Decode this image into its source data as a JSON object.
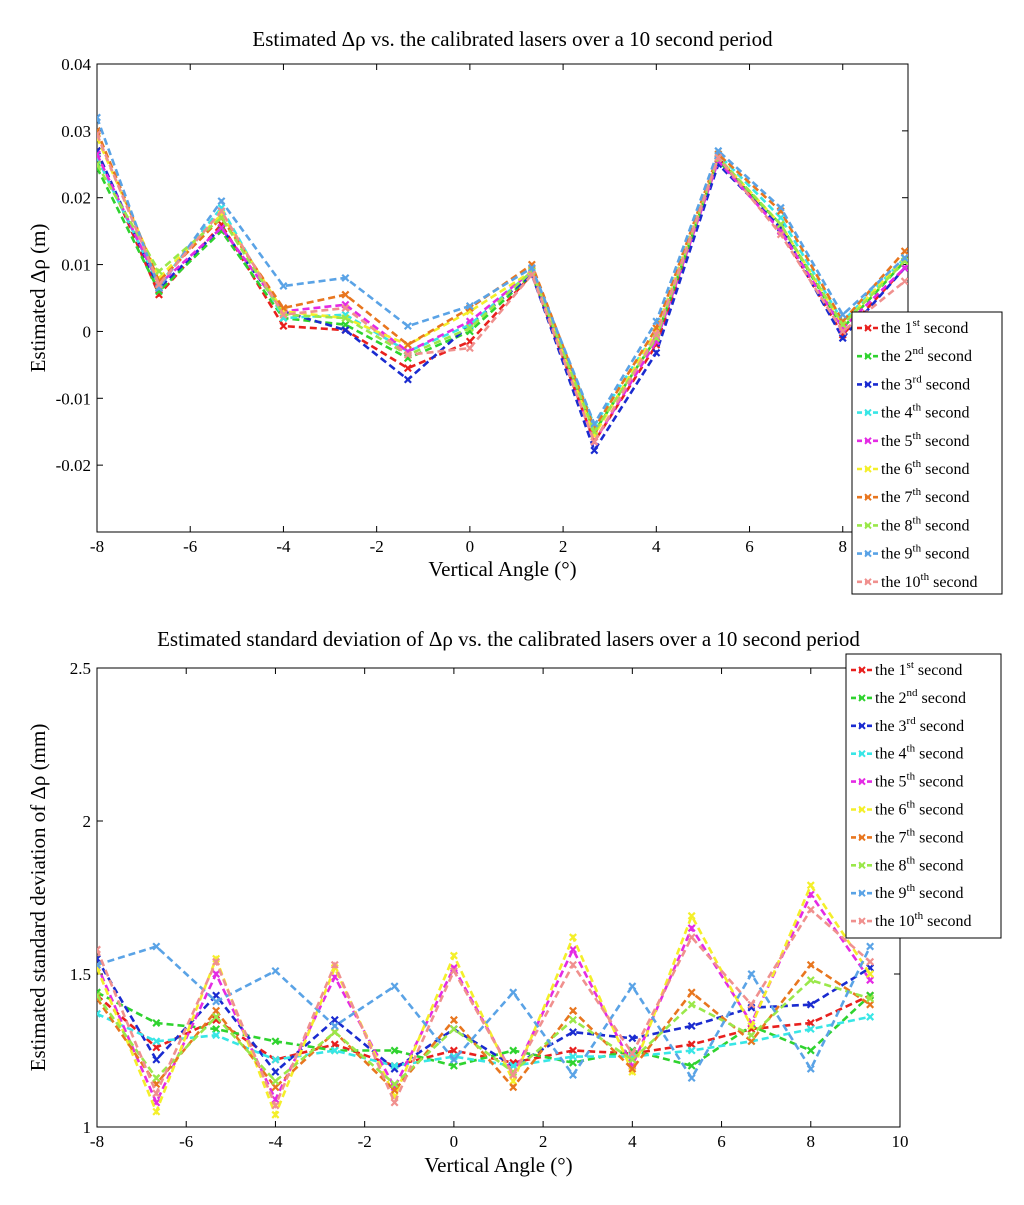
{
  "chart_data": [
    {
      "type": "line",
      "title": "Estimated Δρ vs. the calibrated lasers over a 10 second period",
      "xlabel": "Vertical Angle (°)",
      "ylabel": "Estimated Δρ (m)",
      "xlim": [
        -8,
        9.4
      ],
      "ylim": [
        -0.03,
        0.04
      ],
      "xticks": [
        -8,
        -6,
        -4,
        -2,
        0,
        2,
        4,
        6,
        8
      ],
      "xtick_labels": [
        "-8",
        "-6",
        "-4",
        "-2",
        "0",
        "2",
        "4",
        "6",
        "8"
      ],
      "yticks": [
        -0.02,
        -0.01,
        0,
        0.01,
        0.02,
        0.03,
        0.04
      ],
      "ytick_labels": [
        "-0.02",
        "-0.01",
        "0",
        "0.01",
        "0.02",
        "0.03",
        "0.04"
      ],
      "legend_position": "right",
      "x": [
        -8,
        -6.67,
        -5.33,
        -4,
        -2.67,
        -1.33,
        0,
        1.33,
        2.67,
        4,
        5.33,
        6.67,
        8,
        9.33
      ],
      "series": [
        {
          "name": "the 1st second",
          "label_pre": "the 1",
          "label_sup": "st",
          "label_post": " second",
          "color": "#e8201e",
          "values": [
            0.027,
            0.0055,
            0.016,
            0.0008,
            0.0002,
            -0.0055,
            -0.0015,
            0.0085,
            -0.0165,
            -0.002,
            0.026,
            0.015,
            -0.0005,
            0.0095
          ]
        },
        {
          "name": "the 2nd second",
          "label_pre": "the 2",
          "label_sup": "nd",
          "label_post": " second",
          "color": "#2fd32f",
          "values": [
            0.0245,
            0.006,
            0.015,
            0.002,
            0.001,
            -0.004,
            0.0,
            0.0085,
            -0.015,
            -0.001,
            0.0255,
            0.016,
            0.0005,
            0.0105
          ]
        },
        {
          "name": "the 3rd second",
          "label_pre": "the 3",
          "label_sup": "rd",
          "label_post": " second",
          "color": "#1a2bd0",
          "values": [
            0.027,
            0.0065,
            0.0155,
            0.003,
            0.0002,
            -0.0072,
            0.001,
            0.0085,
            -0.0178,
            -0.0032,
            0.025,
            0.0155,
            -0.001,
            0.0095
          ]
        },
        {
          "name": "the 4th second",
          "label_pre": "the 4",
          "label_sup": "th",
          "label_post": " second",
          "color": "#38e6e6",
          "values": [
            0.026,
            0.007,
            0.0185,
            0.002,
            0.0025,
            -0.003,
            0.001,
            0.009,
            -0.014,
            0.0,
            0.0265,
            0.017,
            0.0015,
            0.011
          ]
        },
        {
          "name": "the 5th second",
          "label_pre": "the 5",
          "label_sup": "th",
          "label_post": " second",
          "color": "#e42be4",
          "values": [
            0.0265,
            0.007,
            0.0155,
            0.003,
            0.004,
            -0.003,
            0.0015,
            0.009,
            -0.0165,
            -0.0015,
            0.0255,
            0.015,
            0.0005,
            0.0095
          ]
        },
        {
          "name": "the 6th second",
          "label_pre": "the 6",
          "label_sup": "th",
          "label_post": " second",
          "color": "#f4ef2a",
          "values": [
            0.029,
            0.008,
            0.0175,
            0.003,
            0.002,
            -0.002,
            0.003,
            0.009,
            -0.0155,
            0.0,
            0.026,
            0.016,
            0.001,
            0.011
          ]
        },
        {
          "name": "the 7th second",
          "label_pre": "the 7",
          "label_sup": "th",
          "label_post": " second",
          "color": "#e8761f",
          "values": [
            0.03,
            0.0075,
            0.017,
            0.0035,
            0.0055,
            -0.002,
            0.0035,
            0.01,
            -0.0145,
            0.0005,
            0.0265,
            0.018,
            0.0015,
            0.012
          ]
        },
        {
          "name": "the 8th second",
          "label_pre": "the 8",
          "label_sup": "th",
          "label_post": " second",
          "color": "#9ae84a",
          "values": [
            0.025,
            0.009,
            0.017,
            0.0025,
            0.002,
            -0.0035,
            0.0005,
            0.009,
            -0.015,
            -0.001,
            0.026,
            0.016,
            0.001,
            0.0105
          ]
        },
        {
          "name": "the 9th second",
          "label_pre": "the 9",
          "label_sup": "th",
          "label_post": " second",
          "color": "#5aa3e6",
          "values": [
            0.032,
            0.0065,
            0.0195,
            0.0068,
            0.008,
            0.0008,
            0.0038,
            0.0095,
            -0.0138,
            0.0015,
            0.027,
            0.0185,
            0.0025,
            0.011
          ]
        },
        {
          "name": "the 10th second",
          "label_pre": "the 10",
          "label_sup": "th",
          "label_post": " second",
          "color": "#f0908e",
          "values": [
            0.0295,
            0.007,
            0.018,
            0.0025,
            0.0035,
            -0.0035,
            -0.0025,
            0.0085,
            -0.0165,
            -0.0005,
            0.026,
            0.0145,
            0.0,
            0.0075
          ]
        }
      ]
    },
    {
      "type": "line",
      "title": "Estimated standard deviation of Δρ vs. the calibrated lasers over a 10 second period",
      "xlabel": "Vertical Angle (°)",
      "ylabel": "Estimated standard deviation of Δρ (mm)",
      "xlim": [
        -8,
        10
      ],
      "ylim": [
        1,
        2.5
      ],
      "xticks": [
        -8,
        -6,
        -4,
        -2,
        0,
        2,
        4,
        6,
        8,
        10
      ],
      "xtick_labels": [
        "-8",
        "-6",
        "-4",
        "-2",
        "0",
        "2",
        "4",
        "6",
        "8",
        "10"
      ],
      "yticks": [
        1,
        1.5,
        2,
        2.5
      ],
      "ytick_labels": [
        "1",
        "1.5",
        "2",
        "2.5"
      ],
      "legend_position": "top-right",
      "x": [
        -8,
        -6.67,
        -5.33,
        -4,
        -2.67,
        -1.33,
        0,
        1.33,
        2.67,
        4,
        5.33,
        6.67,
        8,
        9.33
      ],
      "series": [
        {
          "name": "the 1st second",
          "label_pre": "the 1",
          "label_sup": "st",
          "label_post": " second",
          "color": "#e8201e",
          "values": [
            1.43,
            1.26,
            1.35,
            1.22,
            1.27,
            1.2,
            1.25,
            1.21,
            1.25,
            1.24,
            1.27,
            1.32,
            1.34,
            1.43
          ]
        },
        {
          "name": "the 2nd second",
          "label_pre": "the 2",
          "label_sup": "nd",
          "label_post": " second",
          "color": "#2fd32f",
          "values": [
            1.44,
            1.34,
            1.32,
            1.28,
            1.25,
            1.25,
            1.2,
            1.25,
            1.21,
            1.25,
            1.2,
            1.33,
            1.25,
            1.43
          ]
        },
        {
          "name": "the 3rd second",
          "label_pre": "the 3",
          "label_sup": "rd",
          "label_post": " second",
          "color": "#1a2bd0",
          "values": [
            1.55,
            1.22,
            1.43,
            1.18,
            1.35,
            1.19,
            1.32,
            1.2,
            1.31,
            1.29,
            1.33,
            1.39,
            1.4,
            1.52
          ]
        },
        {
          "name": "the 4th second",
          "label_pre": "the 4",
          "label_sup": "th",
          "label_post": " second",
          "color": "#38e6e6",
          "values": [
            1.37,
            1.28,
            1.3,
            1.22,
            1.25,
            1.2,
            1.23,
            1.2,
            1.23,
            1.23,
            1.25,
            1.28,
            1.32,
            1.36
          ]
        },
        {
          "name": "the 5th second",
          "label_pre": "the 5",
          "label_sup": "th",
          "label_post": " second",
          "color": "#e42be4",
          "values": [
            1.53,
            1.08,
            1.5,
            1.09,
            1.49,
            1.13,
            1.52,
            1.17,
            1.58,
            1.2,
            1.65,
            1.34,
            1.76,
            1.48
          ]
        },
        {
          "name": "the 6th second",
          "label_pre": "the 6",
          "label_sup": "th",
          "label_post": " second",
          "color": "#f4ef2a",
          "values": [
            1.52,
            1.05,
            1.55,
            1.04,
            1.52,
            1.1,
            1.56,
            1.15,
            1.62,
            1.18,
            1.69,
            1.33,
            1.79,
            1.5
          ]
        },
        {
          "name": "the 7th second",
          "label_pre": "the 7",
          "label_sup": "th",
          "label_post": " second",
          "color": "#e8761f",
          "values": [
            1.42,
            1.14,
            1.38,
            1.13,
            1.31,
            1.12,
            1.35,
            1.13,
            1.38,
            1.19,
            1.44,
            1.28,
            1.53,
            1.4
          ]
        },
        {
          "name": "the 8th second",
          "label_pre": "the 8",
          "label_sup": "th",
          "label_post": " second",
          "color": "#9ae84a",
          "values": [
            1.43,
            1.16,
            1.36,
            1.15,
            1.31,
            1.14,
            1.32,
            1.18,
            1.35,
            1.22,
            1.4,
            1.3,
            1.48,
            1.42
          ]
        },
        {
          "name": "the 9th second",
          "label_pre": "the 9",
          "label_sup": "th",
          "label_post": " second",
          "color": "#5aa3e6",
          "values": [
            1.53,
            1.59,
            1.41,
            1.51,
            1.33,
            1.46,
            1.22,
            1.44,
            1.17,
            1.46,
            1.16,
            1.5,
            1.19,
            1.59
          ]
        },
        {
          "name": "the 10th second",
          "label_pre": "the 10",
          "label_sup": "th",
          "label_post": " second",
          "color": "#f0908e",
          "values": [
            1.58,
            1.11,
            1.54,
            1.07,
            1.53,
            1.08,
            1.51,
            1.17,
            1.53,
            1.24,
            1.62,
            1.4,
            1.71,
            1.54
          ]
        }
      ]
    }
  ]
}
